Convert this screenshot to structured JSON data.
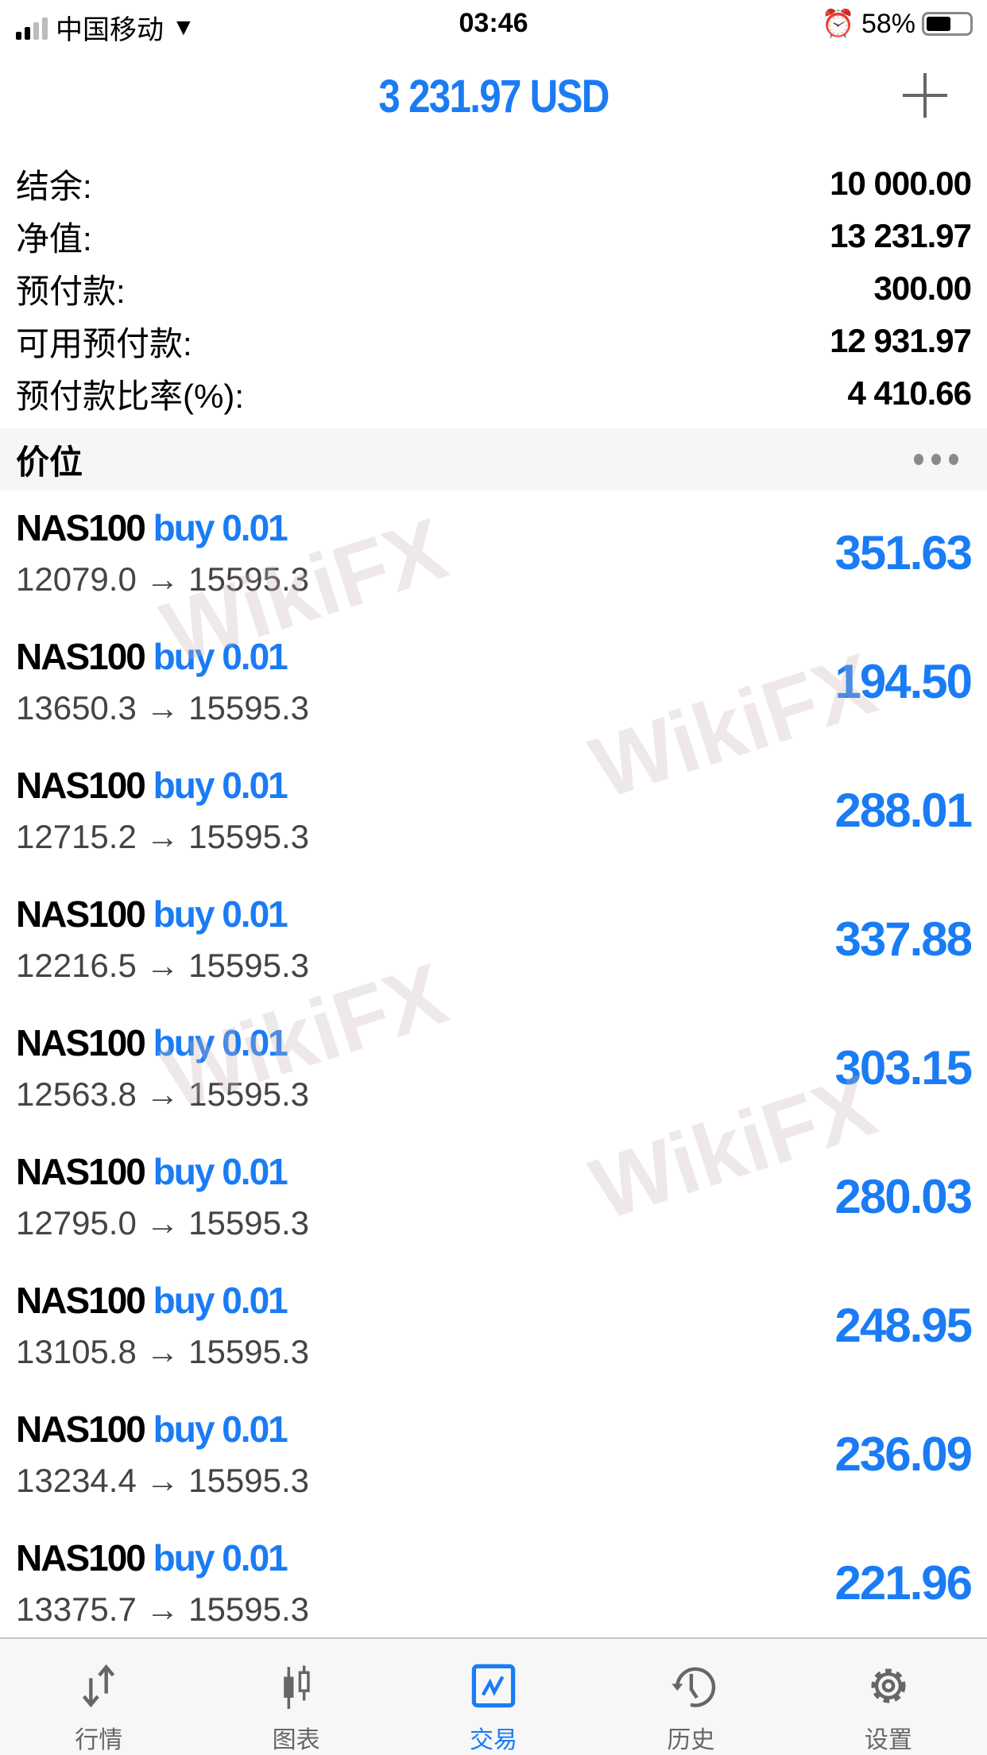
{
  "status_bar": {
    "carrier": "中国移动",
    "time": "03:46",
    "battery": "58%",
    "battery_level": 0.58
  },
  "header": {
    "title": "3 231.97 USD",
    "add_icon": "plus-icon"
  },
  "summary": [
    {
      "label": "结余:",
      "value": "10 000.00"
    },
    {
      "label": "净值:",
      "value": "13 231.97"
    },
    {
      "label": "预付款:",
      "value": "300.00"
    },
    {
      "label": "可用预付款:",
      "value": "12 931.97"
    },
    {
      "label": "预付款比率(%):",
      "value": "4 410.66"
    }
  ],
  "section": {
    "title": "价位",
    "more_icon": "more-dots-icon"
  },
  "positions": [
    {
      "symbol": "NAS100",
      "type": "buy 0.01",
      "prices": "12079.0 → 15595.3",
      "profit": "351.63"
    },
    {
      "symbol": "NAS100",
      "type": "buy 0.01",
      "prices": "13650.3 → 15595.3",
      "profit": "194.50"
    },
    {
      "symbol": "NAS100",
      "type": "buy 0.01",
      "prices": "12715.2 → 15595.3",
      "profit": "288.01"
    },
    {
      "symbol": "NAS100",
      "type": "buy 0.01",
      "prices": "12216.5 → 15595.3",
      "profit": "337.88"
    },
    {
      "symbol": "NAS100",
      "type": "buy 0.01",
      "prices": "12563.8 → 15595.3",
      "profit": "303.15"
    },
    {
      "symbol": "NAS100",
      "type": "buy 0.01",
      "prices": "12795.0 → 15595.3",
      "profit": "280.03"
    },
    {
      "symbol": "NAS100",
      "type": "buy 0.01",
      "prices": "13105.8 → 15595.3",
      "profit": "248.95"
    },
    {
      "symbol": "NAS100",
      "type": "buy 0.01",
      "prices": "13234.4 → 15595.3",
      "profit": "236.09"
    },
    {
      "symbol": "NAS100",
      "type": "buy 0.01",
      "prices": "13375.7 → 15595.3",
      "profit": "221.96"
    }
  ],
  "watermark": "WikiFX",
  "tabs": [
    {
      "label": "行情",
      "icon": "quotes-arrows-icon"
    },
    {
      "label": "图表",
      "icon": "candlestick-chart-icon"
    },
    {
      "label": "交易",
      "icon": "trade-chart-icon",
      "active": true
    },
    {
      "label": "历史",
      "icon": "history-clock-icon"
    },
    {
      "label": "设置",
      "icon": "settings-gear-icon"
    }
  ],
  "colors": {
    "accent": "#1a7cf5",
    "icon_gray": "#666666"
  }
}
